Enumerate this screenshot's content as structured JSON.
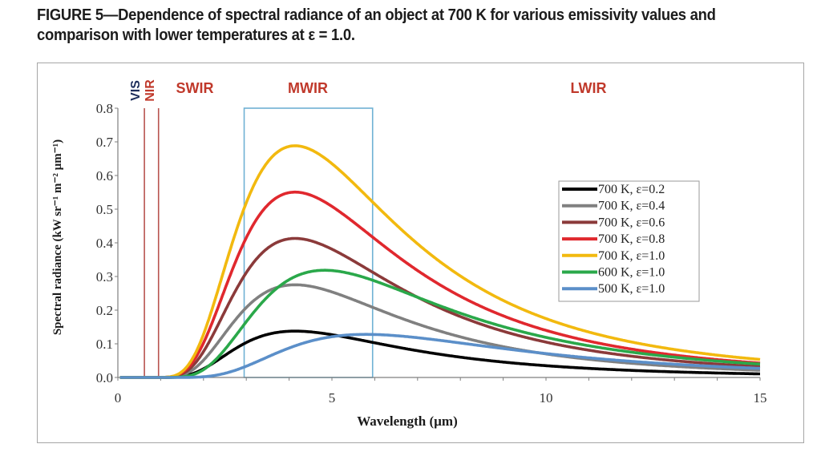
{
  "figure": {
    "title_line1": "FIGURE 5—Dependence of spectral radiance of an object at 700 K for various emissivity values and",
    "title_line2": "comparison with lower temperatures at ε = 1.0."
  },
  "chart_data": {
    "type": "line",
    "xlabel": "Wavelength (µm)",
    "ylabel": "Spectral radiance (kW sr⁻¹ m⁻² µm⁻¹)",
    "xlim": [
      0,
      15
    ],
    "ylim": [
      0,
      0.8
    ],
    "x_ticks": [
      "0",
      "5",
      "10",
      "15"
    ],
    "y_ticks": [
      "0.0",
      "0.1",
      "0.2",
      "0.3",
      "0.4",
      "0.5",
      "0.6",
      "0.7",
      "0.8"
    ],
    "grid": false,
    "legend_position": "right",
    "bands": [
      {
        "label": "VIS",
        "range": [
          0.4,
          0.7
        ],
        "color": "#1f2f5c"
      },
      {
        "label": "NIR",
        "range": [
          0.7,
          1.0
        ],
        "color": "#c0392b"
      },
      {
        "label": "SWIR",
        "range": [
          1.0,
          3.0
        ],
        "color": "#c0392b"
      },
      {
        "label": "MWIR",
        "range": [
          3.0,
          6.0
        ],
        "color": "#c0392b"
      },
      {
        "label": "LWIR",
        "range": [
          8.0,
          15.0
        ],
        "color": "#c0392b"
      }
    ],
    "band_lines": {
      "nir_lines_x": [
        0.62,
        0.95
      ],
      "nir_color": "#b85450",
      "mwir_box_x": [
        2.95,
        5.95
      ],
      "mwir_color": "#6fb1d4"
    },
    "series": [
      {
        "name": "700 K, ε=0.2",
        "temperature": 700,
        "emissivity": 0.2,
        "color": "#000000"
      },
      {
        "name": "700 K, ε=0.4",
        "temperature": 700,
        "emissivity": 0.4,
        "color": "#808080"
      },
      {
        "name": "700 K, ε=0.6",
        "temperature": 700,
        "emissivity": 0.6,
        "color": "#8b3a3a"
      },
      {
        "name": "700 K, ε=0.8",
        "temperature": 700,
        "emissivity": 0.8,
        "color": "#e0282e"
      },
      {
        "name": "700 K, ε=1.0",
        "temperature": 700,
        "emissivity": 1.0,
        "color": "#f2b90f"
      },
      {
        "name": "600 K, ε=1.0",
        "temperature": 600,
        "emissivity": 1.0,
        "color": "#2aa84a"
      },
      {
        "name": "500 K, ε=1.0",
        "temperature": 500,
        "emissivity": 1.0,
        "color": "#5b8fc9"
      }
    ]
  }
}
